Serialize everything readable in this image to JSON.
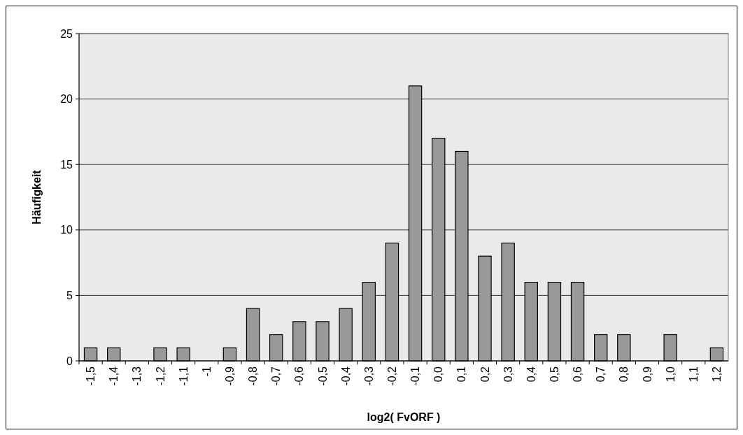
{
  "chart_data": {
    "type": "bar",
    "xlabel": "log2( FvORF )",
    "ylabel": "Häufigkeit",
    "categories": [
      "-1,5",
      "-1,4",
      "-1,3",
      "-1,2",
      "-1,1",
      "-1",
      "-0,9",
      "-0,8",
      "-0,7",
      "-0,6",
      "-0,5",
      "-0,4",
      "-0,3",
      "-0,2",
      "-0,1",
      "0,0",
      "0,1",
      "0,2",
      "0,3",
      "0,4",
      "0,5",
      "0,6",
      "0,7",
      "0,8",
      "0,9",
      "1,0",
      "1,1",
      "1,2"
    ],
    "values": [
      1,
      1,
      0,
      1,
      1,
      0,
      1,
      4,
      2,
      3,
      3,
      4,
      6,
      9,
      21,
      17,
      16,
      8,
      9,
      6,
      6,
      6,
      2,
      2,
      0,
      2,
      0,
      1
    ],
    "color": "#999999",
    "ylim": [
      0,
      25
    ],
    "yticks": [
      0,
      5,
      10,
      15,
      20,
      25
    ],
    "grid": "y"
  }
}
